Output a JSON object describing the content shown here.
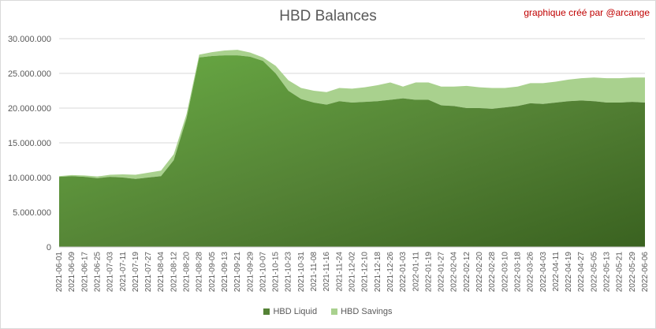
{
  "title": "HBD Balances",
  "credit": "graphique créé par @arcange",
  "chart_data": {
    "type": "area",
    "stacked": true,
    "grid": "horizontal",
    "legend_position": "bottom",
    "ylim": [
      0,
      30000000
    ],
    "yticks": [
      "0",
      "5.000.000",
      "10.000.000",
      "15.000.000",
      "20.000.000",
      "25.000.000",
      "30.000.000"
    ],
    "x": [
      "2021-06-01",
      "2021-06-09",
      "2021-06-17",
      "2021-06-25",
      "2021-07-03",
      "2021-07-11",
      "2021-07-19",
      "2021-07-27",
      "2021-08-04",
      "2021-08-12",
      "2021-08-20",
      "2021-08-28",
      "2021-09-05",
      "2021-09-13",
      "2021-09-21",
      "2021-09-29",
      "2021-10-07",
      "2021-10-15",
      "2021-10-23",
      "2021-10-31",
      "2021-11-08",
      "2021-11-16",
      "2021-11-24",
      "2021-12-02",
      "2021-12-10",
      "2021-12-18",
      "2021-12-26",
      "2022-01-03",
      "2022-01-11",
      "2022-01-19",
      "2022-01-27",
      "2022-02-04",
      "2022-02-12",
      "2022-02-20",
      "2022-02-28",
      "2022-03-10",
      "2022-03-18",
      "2022-03-26",
      "2022-04-03",
      "2022-04-11",
      "2022-04-19",
      "2022-04-27",
      "2022-05-05",
      "2022-05-13",
      "2022-05-21",
      "2022-05-29",
      "2022-06-06"
    ],
    "series": [
      {
        "name": "HBD Liquid",
        "color": "#548235",
        "values": [
          10100000,
          10200000,
          10100000,
          9900000,
          10100000,
          10000000,
          9800000,
          10000000,
          10200000,
          12500000,
          18500000,
          27300000,
          27500000,
          27600000,
          27600000,
          27400000,
          26800000,
          25000000,
          22500000,
          21300000,
          20800000,
          20500000,
          21000000,
          20800000,
          20900000,
          21000000,
          21200000,
          21400000,
          21200000,
          21200000,
          20400000,
          20300000,
          20000000,
          20000000,
          19900000,
          20100000,
          20300000,
          20700000,
          20600000,
          20800000,
          21000000,
          21100000,
          21000000,
          20800000,
          20800000,
          20900000,
          20800000
        ]
      },
      {
        "name": "HBD Savings",
        "color": "#a9d18e",
        "values": [
          100000,
          150000,
          200000,
          250000,
          300000,
          450000,
          600000,
          700000,
          800000,
          850000,
          600000,
          400000,
          550000,
          700000,
          800000,
          600000,
          500000,
          1100000,
          1500000,
          1600000,
          1700000,
          1800000,
          1900000,
          2000000,
          2100000,
          2300000,
          2500000,
          1700000,
          2500000,
          2500000,
          2700000,
          2800000,
          3200000,
          3000000,
          3000000,
          2800000,
          2800000,
          2900000,
          3000000,
          3000000,
          3100000,
          3200000,
          3400000,
          3500000,
          3500000,
          3500000,
          3600000
        ]
      }
    ]
  }
}
